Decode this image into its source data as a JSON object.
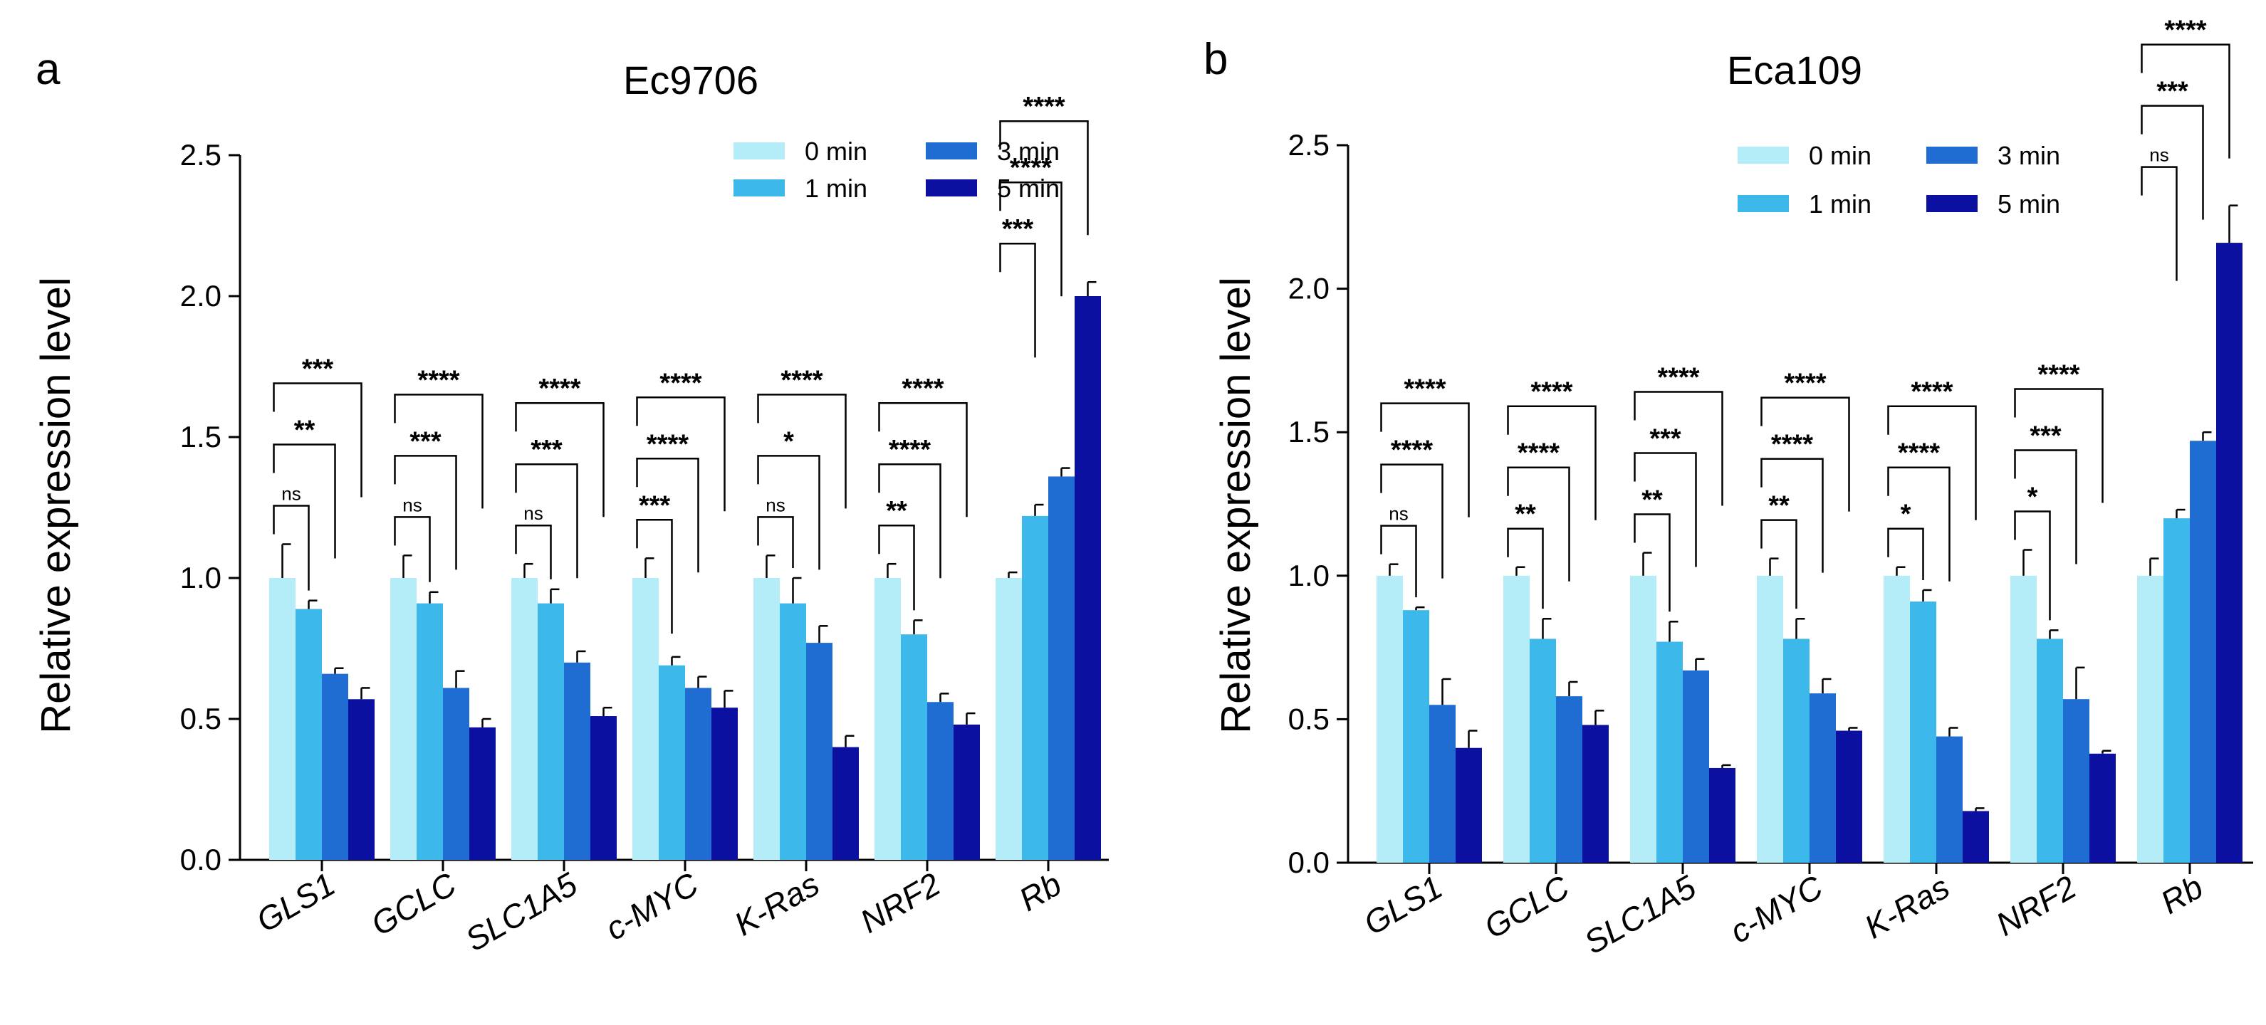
{
  "colors": {
    "0 min": "#b4ecf8",
    "1 min": "#3db8ea",
    "3 min": "#1f6dd3",
    "5 min": "#0b10a1",
    "axis": "#000000"
  },
  "chart_data": [
    {
      "panel_label": "a",
      "type": "bar",
      "title": "Ec9706",
      "ylabel": "Relative expression level",
      "xlabel": "",
      "ylim": [
        0,
        2.5
      ],
      "yticks": [
        "0.0",
        "0.5",
        "1.0",
        "1.5",
        "2.0",
        "2.5"
      ],
      "legend_position": "top-right",
      "categories": [
        "GLS1",
        "GCLC",
        "SLC1A5",
        "c-MYC",
        "K-Ras",
        "NRF2",
        "Rb"
      ],
      "series": [
        {
          "name": "0 min",
          "values": [
            1.0,
            1.0,
            1.0,
            1.0,
            1.0,
            1.0,
            1.0
          ],
          "errors": [
            0.12,
            0.08,
            0.05,
            0.07,
            0.08,
            0.05,
            0.02
          ]
        },
        {
          "name": "1 min",
          "values": [
            0.89,
            0.91,
            0.91,
            0.69,
            0.91,
            0.8,
            1.22
          ],
          "errors": [
            0.03,
            0.04,
            0.05,
            0.03,
            0.09,
            0.05,
            0.04
          ]
        },
        {
          "name": "3 min",
          "values": [
            0.66,
            0.61,
            0.7,
            0.61,
            0.77,
            0.56,
            1.36
          ],
          "errors": [
            0.02,
            0.06,
            0.04,
            0.04,
            0.06,
            0.03,
            0.03
          ]
        },
        {
          "name": "5 min",
          "values": [
            0.57,
            0.47,
            0.51,
            0.54,
            0.4,
            0.48,
            2.0
          ],
          "errors": [
            0.04,
            0.03,
            0.03,
            0.06,
            0.04,
            0.04,
            0.05
          ]
        }
      ],
      "significance": [
        [
          "ns",
          "**",
          "***"
        ],
        [
          "ns",
          "***",
          "****"
        ],
        [
          "ns",
          "***",
          "****"
        ],
        [
          "***",
          "****",
          "****"
        ],
        [
          "ns",
          "*",
          "****"
        ],
        [
          "**",
          "****",
          "****"
        ],
        [
          "***",
          "****",
          "****"
        ]
      ]
    },
    {
      "panel_label": "b",
      "type": "bar",
      "title": "Eca109",
      "ylabel": "Relative expression level",
      "xlabel": "",
      "ylim": [
        0,
        2.5
      ],
      "yticks": [
        "0.0",
        "0.5",
        "1.0",
        "1.5",
        "2.0",
        "2.5"
      ],
      "legend_position": "top-right",
      "categories": [
        "GLS1",
        "GCLC",
        "SLC1A5",
        "c-MYC",
        "K-Ras",
        "NRF2",
        "Rb"
      ],
      "series": [
        {
          "name": "0 min",
          "values": [
            1.0,
            1.0,
            1.0,
            1.0,
            1.0,
            1.0,
            1.0
          ],
          "errors": [
            0.04,
            0.03,
            0.08,
            0.06,
            0.03,
            0.09,
            0.06
          ]
        },
        {
          "name": "1 min",
          "values": [
            0.88,
            0.78,
            0.77,
            0.78,
            0.91,
            0.78,
            1.2
          ],
          "errors": [
            0.01,
            0.07,
            0.07,
            0.07,
            0.04,
            0.03,
            0.03
          ]
        },
        {
          "name": "3 min",
          "values": [
            0.55,
            0.58,
            0.67,
            0.59,
            0.44,
            0.57,
            1.47
          ],
          "errors": [
            0.09,
            0.05,
            0.04,
            0.05,
            0.03,
            0.11,
            0.03
          ]
        },
        {
          "name": "5 min",
          "values": [
            0.4,
            0.48,
            0.33,
            0.46,
            0.18,
            0.38,
            2.16
          ],
          "errors": [
            0.06,
            0.05,
            0.01,
            0.01,
            0.01,
            0.01,
            0.13
          ]
        }
      ],
      "significance": [
        [
          "ns",
          "****",
          "****"
        ],
        [
          "**",
          "****",
          "****"
        ],
        [
          "**",
          "***",
          "****"
        ],
        [
          "**",
          "****",
          "****"
        ],
        [
          "*",
          "****",
          "****"
        ],
        [
          "*",
          "***",
          "****"
        ],
        [
          "ns",
          "***",
          "****"
        ]
      ]
    }
  ]
}
